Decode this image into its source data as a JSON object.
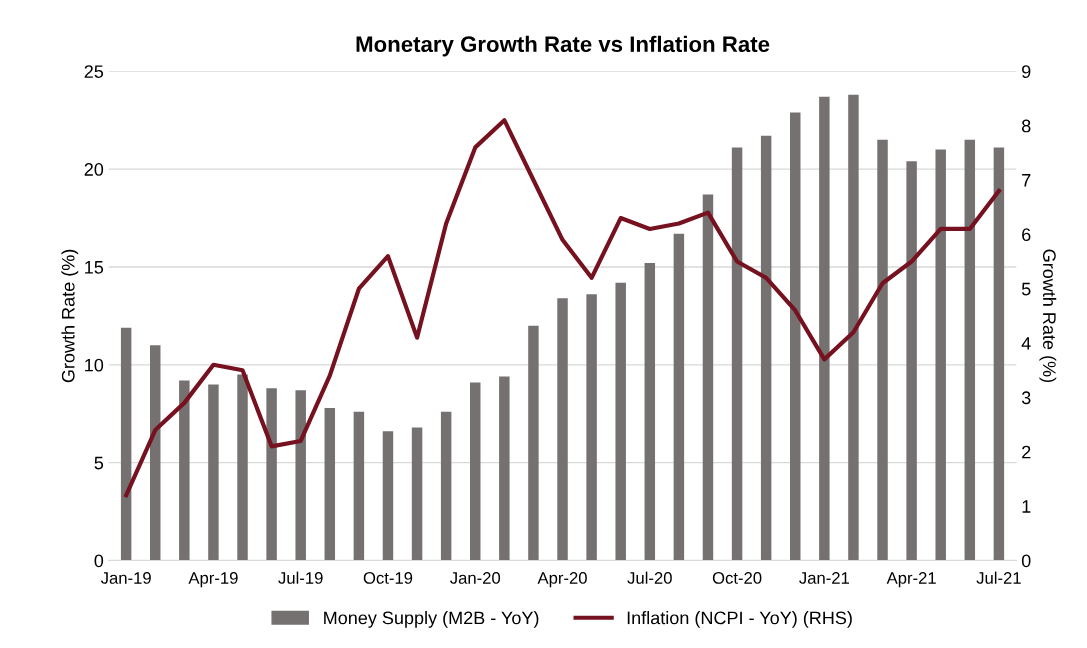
{
  "chart_data": {
    "type": "bar",
    "title": "Monetary Growth Rate vs Inflation Rate",
    "ylabel": "Growth Rate (%)",
    "y2label": "Growth Rate (%)",
    "categories": [
      "Jan-19",
      null,
      null,
      "Apr-19",
      null,
      null,
      "Jul-19",
      null,
      null,
      "Oct-19",
      null,
      null,
      "Jan-20",
      null,
      null,
      "Apr-20",
      null,
      null,
      "Jul-20",
      null,
      null,
      "Oct-20",
      null,
      null,
      "Jan-21",
      null,
      null,
      "Apr-21",
      null,
      null,
      "Jul-21"
    ],
    "series": [
      {
        "name": "Money Supply (M2B - YoY)",
        "color": "#757171",
        "values": [
          11.9,
          11.0,
          9.2,
          9.0,
          9.5,
          8.8,
          8.7,
          7.8,
          7.6,
          6.6,
          6.8,
          7.6,
          9.1,
          9.4,
          12.0,
          13.4,
          13.6,
          14.2,
          15.2,
          16.7,
          18.7,
          21.1,
          21.7,
          22.9,
          23.7,
          23.8,
          21.5,
          20.4,
          21.0,
          21.5,
          21.1
        ]
      },
      {
        "name": "Inflation (NCPI - YoY) (RHS)",
        "type": "line",
        "axis": "y2",
        "color": "#76111f",
        "values": [
          1.2,
          2.4,
          2.9,
          3.6,
          3.5,
          2.1,
          2.2,
          3.4,
          5.0,
          5.6,
          4.1,
          6.2,
          7.6,
          8.1,
          7.0,
          5.9,
          5.2,
          6.3,
          6.1,
          6.2,
          6.4,
          5.5,
          5.2,
          4.6,
          3.7,
          4.2,
          5.1,
          5.5,
          6.1,
          6.1,
          6.8
        ]
      }
    ],
    "ylim": [
      0,
      25
    ],
    "yticks": [
      0,
      5,
      10,
      15,
      20,
      25
    ],
    "y2lim": [
      0,
      9
    ],
    "y2ticks": [
      0,
      1,
      2,
      3,
      4,
      5,
      6,
      7,
      8,
      9
    ],
    "grid": "y",
    "legend": "bottom"
  }
}
